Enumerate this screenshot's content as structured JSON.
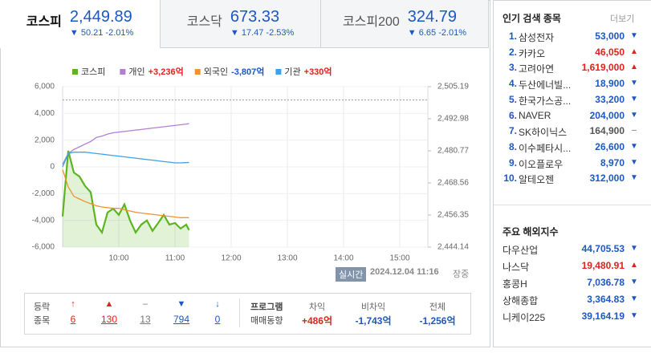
{
  "tabs": [
    {
      "name": "코스피",
      "value": "2,449.89",
      "change": "▼ 50.21 -2.01%"
    },
    {
      "name": "코스닥",
      "value": "673.33",
      "change": "▼ 17.47 -2.53%"
    },
    {
      "name": "코스피200",
      "value": "324.79",
      "change": "▼ 6.65 -2.01%"
    }
  ],
  "active_tab": 0,
  "chart_data": {
    "type": "line",
    "x": [
      9.0,
      9.1,
      9.2,
      9.3,
      9.4,
      9.5,
      9.6,
      9.7,
      9.8,
      9.9,
      10.0,
      10.1,
      10.2,
      10.3,
      10.4,
      10.5,
      10.6,
      10.7,
      10.8,
      10.9,
      11.0,
      11.1,
      11.2,
      11.25
    ],
    "series": [
      {
        "name": "코스피",
        "color": "#5ab51f",
        "axis": "y2",
        "area": true,
        "values": [
          2455.8,
          2480.8,
          2472.5,
          2471.0,
          2467.4,
          2465.0,
          2452.7,
          2449.7,
          2457.3,
          2458.8,
          2456.4,
          2460.4,
          2454.3,
          2449.7,
          2452.7,
          2454.3,
          2450.3,
          2453.3,
          2456.4,
          2452.7,
          2453.3,
          2451.2,
          2452.7,
          2450.6
        ]
      },
      {
        "name": "개인",
        "color": "#b07fd4",
        "legend_value": "+3,236억",
        "legend_value_color": "#e0211d",
        "values": [
          200,
          1000,
          1300,
          1500,
          1700,
          1900,
          2200,
          2300,
          2450,
          2550,
          2600,
          2650,
          2700,
          2750,
          2800,
          2850,
          2900,
          2950,
          3000,
          3050,
          3100,
          3150,
          3200,
          3236
        ]
      },
      {
        "name": "외국인",
        "color": "#f0932b",
        "legend_value": "-3,807억",
        "legend_value_color": "#1c57c4",
        "values": [
          -200,
          -1500,
          -2200,
          -2400,
          -2600,
          -2750,
          -2900,
          -3000,
          -3050,
          -3100,
          -3100,
          -3200,
          -3300,
          -3400,
          -3450,
          -3500,
          -3550,
          -3600,
          -3650,
          -3700,
          -3750,
          -3800,
          -3800,
          -3807
        ]
      },
      {
        "name": "기관",
        "color": "#3ea0e6",
        "legend_value": "+330억",
        "legend_value_color": "#e0211d",
        "values": [
          0,
          1000,
          1100,
          1100,
          1100,
          1050,
          1000,
          950,
          900,
          850,
          800,
          750,
          700,
          650,
          600,
          550,
          500,
          450,
          400,
          350,
          300,
          300,
          320,
          330
        ]
      }
    ],
    "xlim": [
      9,
      15.5
    ],
    "xticks": [
      {
        "value": 10,
        "label": "10:00"
      },
      {
        "value": 11,
        "label": "11:00"
      },
      {
        "value": 12,
        "label": "12:00"
      },
      {
        "value": 13,
        "label": "13:00"
      },
      {
        "value": 14,
        "label": "14:00"
      },
      {
        "value": 15,
        "label": "15:00"
      }
    ],
    "ylim": [
      -6000,
      6000
    ],
    "yticks": [
      {
        "value": 6000,
        "label": "6,000"
      },
      {
        "value": 4000,
        "label": "4,000"
      },
      {
        "value": 2000,
        "label": "2,000"
      },
      0,
      {
        "value": -2000,
        "label": "-2,000"
      },
      {
        "value": -4000,
        "label": "-4,000"
      },
      {
        "value": -6000,
        "label": "-6,000"
      }
    ],
    "y2lim": [
      2444.14,
      2505.19
    ],
    "y2ticks": [
      {
        "value": 2505.19,
        "label": "2,505.19"
      },
      {
        "value": 2492.98,
        "label": "2,492.98"
      },
      {
        "value": 2480.77,
        "label": "2,480.77"
      },
      {
        "value": 2468.56,
        "label": "2,468.56"
      },
      {
        "value": 2456.35,
        "label": "2,456.35"
      },
      {
        "value": 2444.14,
        "label": "2,444.14"
      }
    ],
    "y2_reference": 2500.1,
    "grid": true
  },
  "status": {
    "badge": "실시간",
    "time": "2024.12.04 11:16",
    "session": "장중"
  },
  "breadth": {
    "label1": "등락",
    "label2": "종목",
    "items": [
      {
        "icon": "↑",
        "count": "6",
        "color": "#e0211d"
      },
      {
        "icon": "▲",
        "count": "130",
        "color": "#e0211d"
      },
      {
        "icon": "–",
        "count": "13",
        "color": "#777777"
      },
      {
        "icon": "▼",
        "count": "794",
        "color": "#1c57c4"
      },
      {
        "icon": "↓",
        "count": "0",
        "color": "#1c57c4"
      }
    ]
  },
  "program": {
    "label1": "프로그램",
    "label2": "매매동향",
    "items": [
      {
        "name": "차익",
        "value": "+486억",
        "color": "#e0211d"
      },
      {
        "name": "비차익",
        "value": "-1,743억",
        "color": "#1c57c4"
      },
      {
        "name": "전체",
        "value": "-1,256억",
        "color": "#1c57c4"
      }
    ]
  },
  "popular": {
    "title": "인기 검색 종목",
    "more": "더보기",
    "items": [
      {
        "rank": "1.",
        "name": "삼성전자",
        "price": "53,000",
        "arrow": "▼",
        "color": "#1c57c4"
      },
      {
        "rank": "2.",
        "name": "카카오",
        "price": "46,050",
        "arrow": "▲",
        "color": "#e0211d"
      },
      {
        "rank": "3.",
        "name": "고려아연",
        "price": "1,619,000",
        "arrow": "▲",
        "color": "#e0211d"
      },
      {
        "rank": "4.",
        "name": "두산에너빌...",
        "price": "18,900",
        "arrow": "▼",
        "color": "#1c57c4"
      },
      {
        "rank": "5.",
        "name": "한국가스공...",
        "price": "33,200",
        "arrow": "▼",
        "color": "#1c57c4"
      },
      {
        "rank": "6.",
        "name": "NAVER",
        "price": "204,000",
        "arrow": "▼",
        "color": "#1c57c4"
      },
      {
        "rank": "7.",
        "name": "SK하이닉스",
        "price": "164,900",
        "arrow": "–",
        "color": "#555555"
      },
      {
        "rank": "8.",
        "name": "이수페타시...",
        "price": "26,600",
        "arrow": "▼",
        "color": "#1c57c4"
      },
      {
        "rank": "9.",
        "name": "이오플로우",
        "price": "8,970",
        "arrow": "▼",
        "color": "#1c57c4"
      },
      {
        "rank": "10.",
        "name": "알테오젠",
        "price": "312,000",
        "arrow": "▼",
        "color": "#1c57c4"
      }
    ]
  },
  "overseas": {
    "title": "주요 해외지수",
    "items": [
      {
        "name": "다우산업",
        "value": "44,705.53",
        "arrow": "▼",
        "color": "#1c57c4"
      },
      {
        "name": "나스닥",
        "value": "19,480.91",
        "arrow": "▲",
        "color": "#e0211d"
      },
      {
        "name": "홍콩H",
        "value": "7,036.78",
        "arrow": "▼",
        "color": "#1c57c4"
      },
      {
        "name": "상해종합",
        "value": "3,364.83",
        "arrow": "▼",
        "color": "#1c57c4"
      },
      {
        "name": "니케이225",
        "value": "39,164.19",
        "arrow": "▼",
        "color": "#1c57c4"
      }
    ]
  }
}
